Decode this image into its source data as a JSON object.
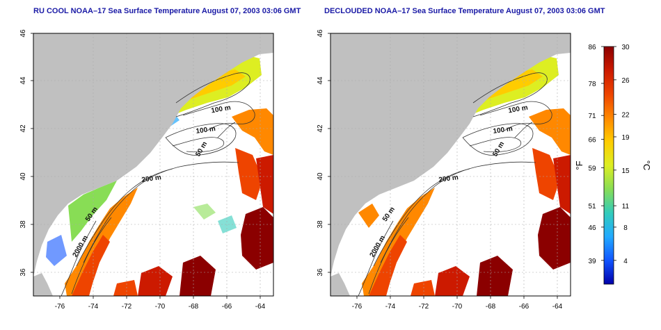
{
  "panels": [
    {
      "id": "left",
      "title": "RU COOL NOAA–17 Sea Surface Temperature August 07, 2003 03:06 GMT",
      "x_ticks": [
        "-76",
        "-74",
        "-72",
        "-70",
        "-68",
        "-66",
        "-64"
      ],
      "y_ticks": [
        "36",
        "38",
        "40",
        "42",
        "44",
        "46"
      ],
      "contour_labels": [
        "100 m",
        "100 m",
        "50 m",
        "200 m",
        "50 m",
        "2000 m"
      ]
    },
    {
      "id": "right",
      "title": "DECLOUDED NOAA–17 Sea Surface Temperature August 07, 2003 03:06 GMT",
      "x_ticks": [
        "-76",
        "-74",
        "-72",
        "-70",
        "-68",
        "-66",
        "-64"
      ],
      "y_ticks": [
        "36",
        "38",
        "40",
        "42",
        "44",
        "46"
      ],
      "contour_labels": [
        "100 m",
        "100 m",
        "50 m",
        "200 m",
        "50 m",
        "2000 m"
      ]
    }
  ],
  "colorbar": {
    "fahrenheit_label": "°F",
    "celsius_label": "°C",
    "fahrenheit_ticks": [
      "86",
      "78",
      "71",
      "66",
      "59",
      "51",
      "46",
      "39"
    ],
    "celsius_ticks": [
      "30",
      "26",
      "22",
      "19",
      "15",
      "11",
      "8",
      "4"
    ],
    "colors": [
      "#8b0000",
      "#cc1a00",
      "#ee4400",
      "#ff8800",
      "#ffcc00",
      "#ddee22",
      "#88dd55",
      "#33ccbb",
      "#22aaff",
      "#1155ff",
      "#0000aa"
    ]
  },
  "colors": {
    "land": "#c0c0c0",
    "ocean_nodata": "#ffffff",
    "title": "#1a1aa6",
    "grid": "#aaaaaa",
    "contour": "#333333"
  }
}
